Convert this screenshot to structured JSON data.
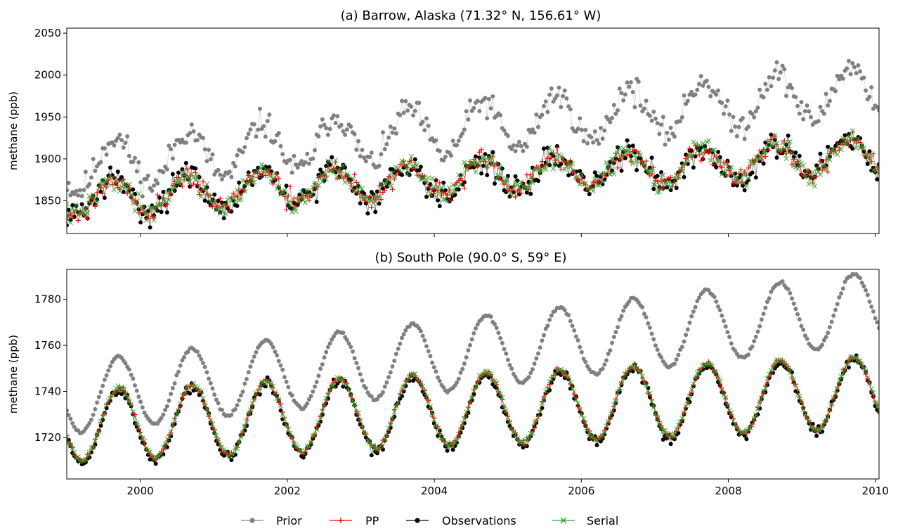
{
  "chart_data": [
    {
      "type": "line",
      "title": "(a) Barrow, Alaska (71.32° N, 156.61° W)",
      "xlabel": "",
      "ylabel": "methane (ppb)",
      "xlim": [
        1999.0,
        2010.05
      ],
      "ylim": [
        1811,
        2056
      ],
      "yticks": [
        1850,
        1900,
        1950,
        2000,
        2050
      ],
      "xticks": [
        2000,
        2002,
        2004,
        2006,
        2008,
        2010
      ],
      "xtick_labels_shown": false,
      "grid": false,
      "model": {
        "prior": {
          "base": 1890,
          "trend": 8.5,
          "amp": 30,
          "phase": 0.3,
          "noise": 16,
          "seed": 11
        },
        "pp": {
          "base": 1852,
          "trend": 4.8,
          "amp": 20,
          "phase": 0.42,
          "noise": 12,
          "seed": 21
        },
        "observed": {
          "base": 1852,
          "trend": 4.8,
          "amp": 20,
          "phase": 0.42,
          "noise": 16,
          "seed": 31
        },
        "serial": {
          "base": 1852,
          "trend": 4.8,
          "amp": 20,
          "phase": 0.42,
          "noise": 12,
          "seed": 41
        }
      }
    },
    {
      "type": "line",
      "title": "(b) South Pole (90.0° S, 59° E)",
      "xlabel": "",
      "ylabel": "methane (ppb)",
      "xlim": [
        1999.0,
        2010.05
      ],
      "ylim": [
        1702,
        1793
      ],
      "yticks": [
        1720,
        1740,
        1760,
        1780
      ],
      "xticks": [
        2000,
        2002,
        2004,
        2006,
        2008,
        2010
      ],
      "xtick_labels": [
        "2000",
        "2002",
        "2004",
        "2006",
        "2008",
        "2010"
      ],
      "grid": false,
      "model": {
        "prior": {
          "base": 1737,
          "trend": 3.6,
          "amp": 15.5,
          "phase": 0.0,
          "noise": 0.6,
          "seed": 12
        },
        "pp": {
          "base": 1725,
          "trend": 1.35,
          "amp": 15.5,
          "phase": -0.05,
          "noise": 1.2,
          "seed": 22
        },
        "observed": {
          "base": 1724,
          "trend": 1.35,
          "amp": 15.5,
          "phase": -0.05,
          "noise": 2.2,
          "seed": 32
        },
        "serial": {
          "base": 1725,
          "trend": 1.35,
          "amp": 15.5,
          "phase": -0.05,
          "noise": 1.2,
          "seed": 42
        }
      }
    }
  ],
  "legend": {
    "placement": "bottom-center",
    "entries": [
      {
        "name": "Prior",
        "color": "#808080",
        "marker": "dot"
      },
      {
        "name": "PP",
        "color": "#ff0000",
        "marker": "plus"
      },
      {
        "name": "Observations",
        "color": "#000000",
        "marker": "dot"
      },
      {
        "name": "Serial",
        "color": "#2ca02c",
        "marker": "x"
      }
    ]
  }
}
